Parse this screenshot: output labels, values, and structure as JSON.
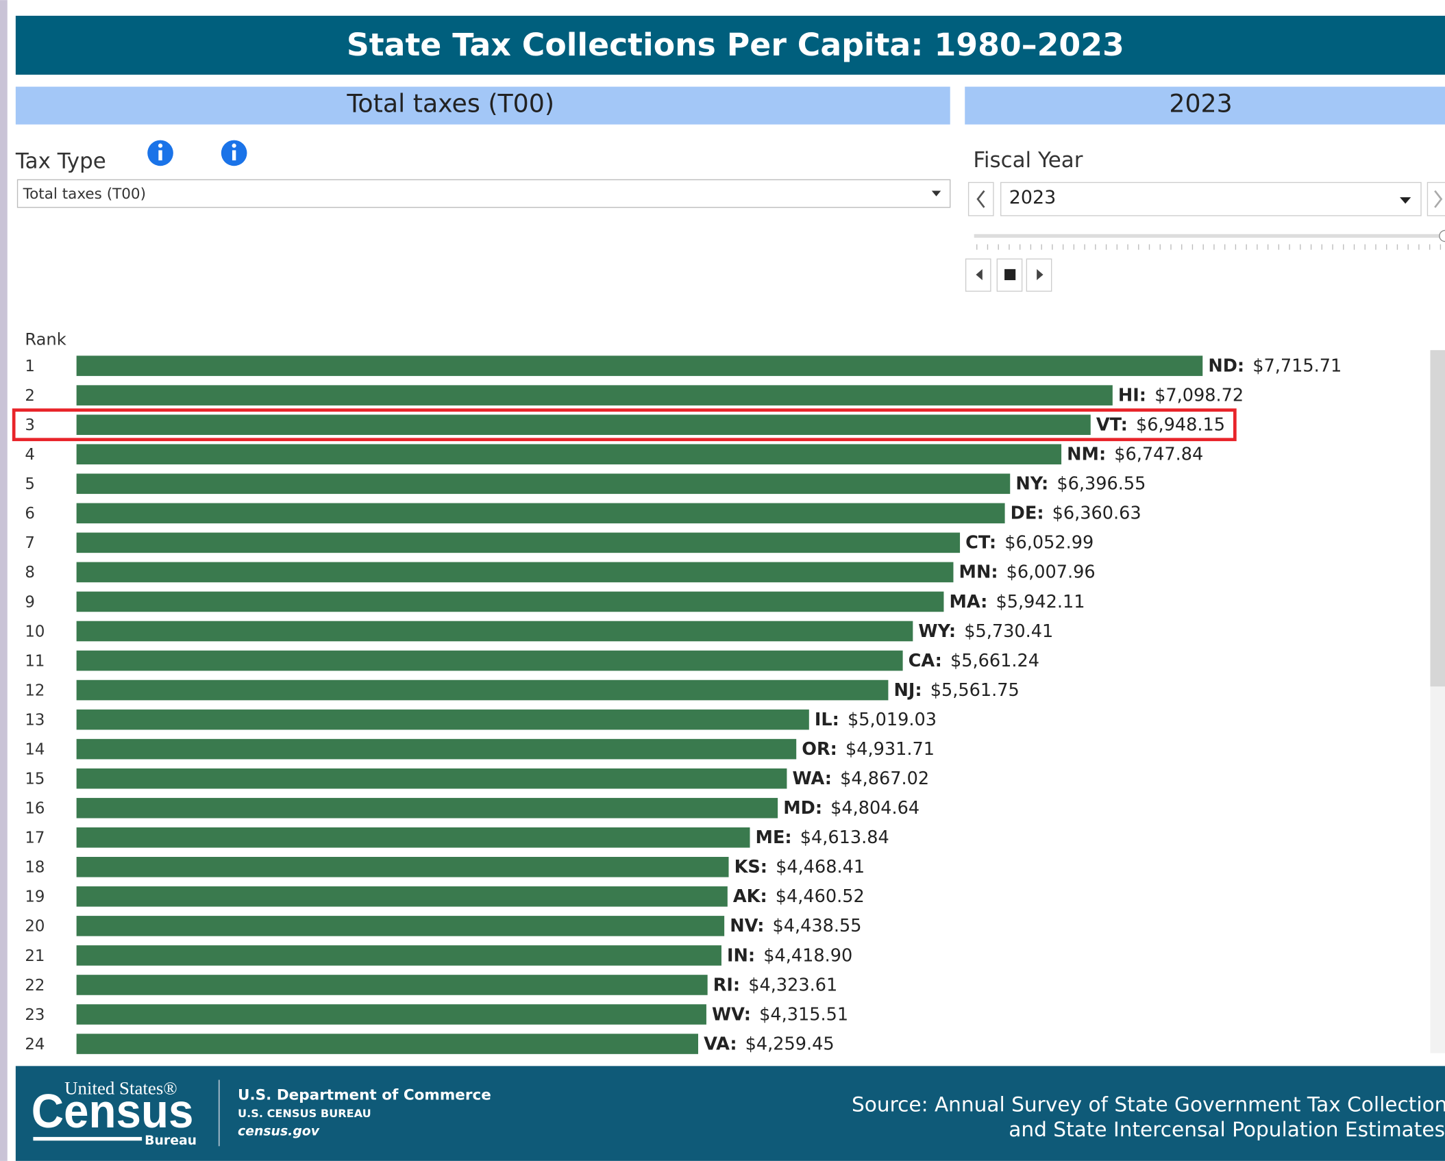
{
  "header": {
    "title": "State Tax Collections Per Capita: 1980–2023"
  },
  "banner": {
    "tax_type": "Total taxes (T00)",
    "year": "2023"
  },
  "controls": {
    "tax_type_label": "Tax Type",
    "tax_type_value": "Total taxes (T00)",
    "fiscal_year_label": "Fiscal Year",
    "fiscal_year_value": "2023"
  },
  "chart_data": {
    "type": "bar",
    "orientation": "horizontal",
    "y_label": "Rank",
    "categories": [
      "1",
      "2",
      "3",
      "4",
      "5",
      "6",
      "7",
      "8",
      "9",
      "10",
      "11",
      "12",
      "13",
      "14",
      "15",
      "16",
      "17",
      "18",
      "19",
      "20",
      "21",
      "22",
      "23",
      "24"
    ],
    "labels": [
      "ND:",
      "HI:",
      "VT:",
      "NM:",
      "NY:",
      "DE:",
      "CT:",
      "MN:",
      "MA:",
      "WY:",
      "CA:",
      "NJ:",
      "IL:",
      "OR:",
      "WA:",
      "MD:",
      "ME:",
      "KS:",
      "AK:",
      "NV:",
      "IN:",
      "RI:",
      "WV:",
      "VA:"
    ],
    "values": [
      7715.71,
      7098.72,
      6948.15,
      6747.84,
      6396.55,
      6360.63,
      6052.99,
      6007.96,
      5942.11,
      5730.41,
      5661.24,
      5561.75,
      5019.03,
      4931.71,
      4867.02,
      4804.64,
      4613.84,
      4468.41,
      4460.52,
      4438.55,
      4418.9,
      4323.61,
      4315.51,
      4259.45
    ],
    "value_labels": [
      "$7,715.71",
      "$7,098.72",
      "$6,948.15",
      "$6,747.84",
      "$6,396.55",
      "$6,360.63",
      "$6,052.99",
      "$6,007.96",
      "$5,942.11",
      "$5,730.41",
      "$5,661.24",
      "$5,561.75",
      "$5,019.03",
      "$4,931.71",
      "$4,867.02",
      "$4,804.64",
      "$4,613.84",
      "$4,468.41",
      "$4,460.52",
      "$4,438.55",
      "$4,418.90",
      "$4,323.61",
      "$4,315.51",
      "$4,259.45"
    ],
    "color": "#3a7a4e",
    "highlight": "3"
  },
  "footer": {
    "logo_top": "United States®",
    "logo_main": "Census",
    "logo_bottom": "Bureau",
    "dept": "U.S. Department of Commerce",
    "bureau": "U.S. CENSUS BUREAU",
    "site": "census.gov",
    "source_line1": "Source: Annual Survey of State Government Tax Collections",
    "source_line2": "and State Intercensal Population Estimates"
  }
}
